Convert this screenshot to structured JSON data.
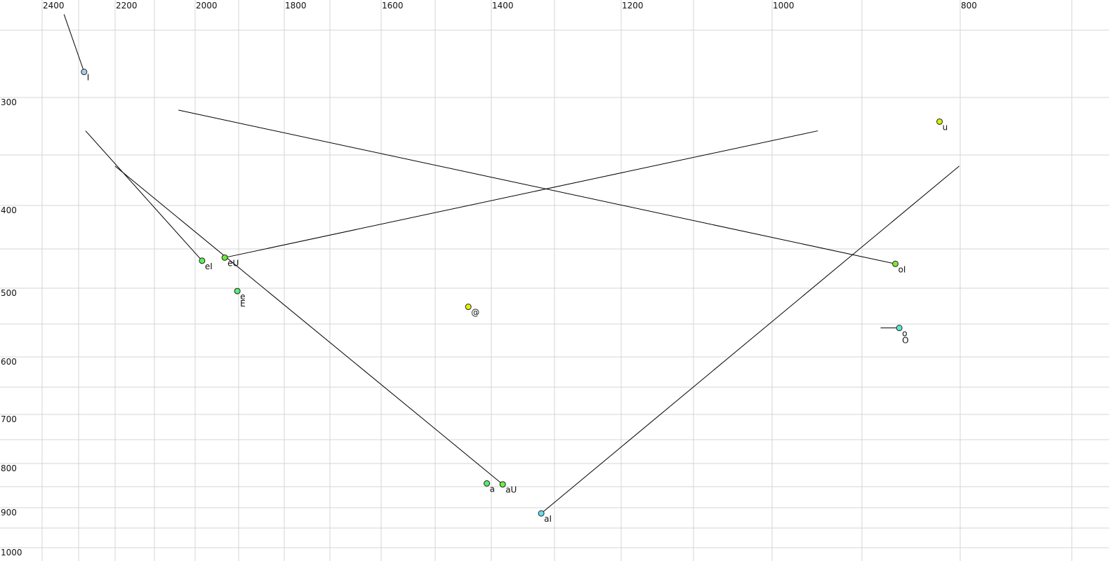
{
  "chart_data": {
    "type": "scatter",
    "title": "",
    "xlabel": "",
    "ylabel": "",
    "x_axis": {
      "reversed": true,
      "scale": "nonlinear (perceptual)",
      "ticks": [
        2400,
        2200,
        2000,
        1800,
        1600,
        1400,
        1200,
        1000,
        800
      ],
      "gridlines_every": 100,
      "position": "top"
    },
    "y_axis": {
      "reversed": false,
      "scale": "nonlinear (perceptual)",
      "ticks": [
        300,
        400,
        500,
        600,
        700,
        800,
        900,
        1000
      ],
      "gridlines_every": 50,
      "position": "left"
    },
    "grid": true,
    "points": [
      {
        "labels": [
          "I"
        ],
        "x": 2285,
        "y": 281,
        "color": "#a8cdf2"
      },
      {
        "labels": [
          "u"
        ],
        "x": 821,
        "y": 321,
        "color": "#d4f000"
      },
      {
        "labels": [
          "eI"
        ],
        "x": 1984,
        "y": 465,
        "color": "#5ef05e"
      },
      {
        "labels": [
          "eU"
        ],
        "x": 1932,
        "y": 461,
        "color": "#66f030"
      },
      {
        "labels": [
          "e",
          "E"
        ],
        "x": 1903,
        "y": 504,
        "color": "#55ee77"
      },
      {
        "labels": [
          "@"
        ],
        "x": 1441,
        "y": 526,
        "color": "#e6f000"
      },
      {
        "labels": [
          "oI"
        ],
        "x": 866,
        "y": 469,
        "color": "#7ee83a"
      },
      {
        "labels": [
          "o",
          "O"
        ],
        "x": 862,
        "y": 556,
        "color": "#5ce8d0"
      },
      {
        "labels": [
          "a"
        ],
        "x": 1408,
        "y": 843,
        "color": "#55ee66"
      },
      {
        "labels": [
          "aU"
        ],
        "x": 1382,
        "y": 845,
        "color": "#6ef040"
      },
      {
        "labels": [
          "aI"
        ],
        "x": 1321,
        "y": 914,
        "color": "#66ddee"
      }
    ],
    "tracks": [
      {
        "from": [
          2340,
          240
        ],
        "to": [
          2285,
          281
        ]
      },
      {
        "from": [
          2281,
          329
        ],
        "to": [
          1984,
          465
        ]
      },
      {
        "from": [
          2200,
          361
        ],
        "to": [
          1382,
          845
        ]
      },
      {
        "from": [
          1932,
          461
        ],
        "to": [
          949,
          329
        ]
      },
      {
        "from": [
          2041,
          311
        ],
        "to": [
          866,
          469
        ]
      },
      {
        "from": [
          1321,
          914
        ],
        "to": [
          801,
          361
        ]
      },
      {
        "from": [
          881,
          556
        ],
        "to": [
          862,
          556
        ]
      }
    ]
  }
}
